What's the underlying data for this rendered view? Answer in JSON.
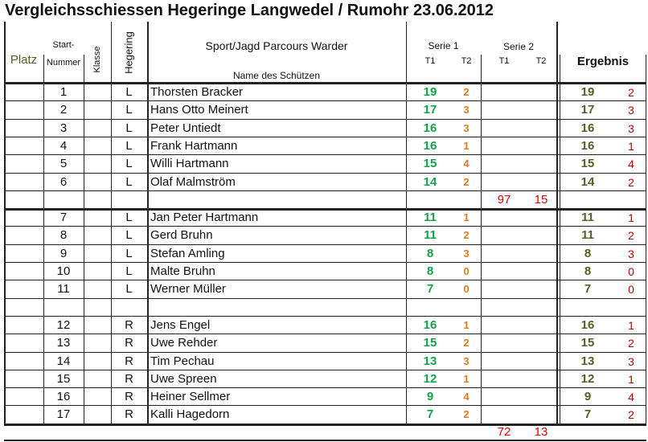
{
  "title": "Vergleichsschiessen Hegeringe Langwedel / Rumohr  23.06.2012",
  "header": {
    "platz": "Platz",
    "start1": "Start-",
    "start2": "Nummer",
    "klasse": "Klasse",
    "hegering": "Hegering",
    "event": "Sport/Jagd Parcours Warder",
    "name": "Name des Schützen",
    "serie1": "Serie 1",
    "serie2": "Serie 2",
    "t1a": "T1",
    "t2a": "T2",
    "t1b": "T1",
    "t2b": "T2",
    "ergebnis": "Ergebnis"
  },
  "colors": {
    "serie_t1": "#16a04a",
    "serie_t2": "#e07b1c",
    "ergebnis": "#4f6228",
    "fehler": "#c00000",
    "subtotal": "#e00000",
    "platz_header": "#4f6228"
  },
  "rows": [
    {
      "type": "player",
      "nr": "1",
      "hegering": "L",
      "name": "Thorsten Bracker",
      "t1": "19",
      "t2": "2",
      "erg": "19",
      "err": "2"
    },
    {
      "type": "player",
      "nr": "2",
      "hegering": "L",
      "name": "Hans Otto Meinert",
      "t1": "17",
      "t2": "3",
      "erg": "17",
      "err": "3"
    },
    {
      "type": "player",
      "nr": "3",
      "hegering": "L",
      "name": "Peter Untiedt",
      "t1": "16",
      "t2": "3",
      "erg": "16",
      "err": "3"
    },
    {
      "type": "player",
      "nr": "4",
      "hegering": "L",
      "name": "Frank Hartmann",
      "t1": "16",
      "t2": "1",
      "erg": "16",
      "err": "1"
    },
    {
      "type": "player",
      "nr": "5",
      "hegering": "L",
      "name": "Willi Hartmann",
      "t1": "15",
      "t2": "4",
      "erg": "15",
      "err": "4"
    },
    {
      "type": "player",
      "nr": "6",
      "hegering": "L",
      "name": "Olaf Malmström",
      "t1": "14",
      "t2": "2",
      "erg": "14",
      "err": "2"
    },
    {
      "type": "subtotal",
      "s1": "97",
      "s2": "15"
    },
    {
      "type": "player",
      "nr": "7",
      "hegering": "L",
      "name": "Jan Peter Hartmann",
      "t1": "11",
      "t2": "1",
      "erg": "11",
      "err": "1"
    },
    {
      "type": "player",
      "nr": "8",
      "hegering": "L",
      "name": "Gerd Bruhn",
      "t1": "11",
      "t2": "2",
      "erg": "11",
      "err": "2"
    },
    {
      "type": "player",
      "nr": "9",
      "hegering": "L",
      "name": "Stefan Amling",
      "t1": "8",
      "t2": "3",
      "erg": "8",
      "err": "3"
    },
    {
      "type": "player",
      "nr": "10",
      "hegering": "L",
      "name": "Malte Bruhn",
      "t1": "8",
      "t2": "0",
      "erg": "8",
      "err": "0"
    },
    {
      "type": "player",
      "nr": "11",
      "hegering": "L",
      "name": "Werner Müller",
      "t1": "7",
      "t2": "0",
      "erg": "7",
      "err": "0"
    },
    {
      "type": "blank"
    },
    {
      "type": "player",
      "nr": "12",
      "hegering": "R",
      "name": "Jens Engel",
      "t1": "16",
      "t2": "1",
      "erg": "16",
      "err": "1"
    },
    {
      "type": "player",
      "nr": "13",
      "hegering": "R",
      "name": "Uwe Rehder",
      "t1": "15",
      "t2": "2",
      "erg": "15",
      "err": "2"
    },
    {
      "type": "player",
      "nr": "14",
      "hegering": "R",
      "name": "Tim Pechau",
      "t1": "13",
      "t2": "3",
      "erg": "13",
      "err": "3"
    },
    {
      "type": "player",
      "nr": "15",
      "hegering": "R",
      "name": "Uwe Spreen",
      "t1": "12",
      "t2": "1",
      "erg": "12",
      "err": "1"
    },
    {
      "type": "player",
      "nr": "16",
      "hegering": "R",
      "name": "Heiner Sellmer",
      "t1": "9",
      "t2": "4",
      "erg": "9",
      "err": "4"
    },
    {
      "type": "player",
      "nr": "17",
      "hegering": "R",
      "name": "Kalli Hagedorn",
      "t1": "7",
      "t2": "2",
      "erg": "7",
      "err": "2"
    }
  ],
  "footer": {
    "s1": "72",
    "s2": "13"
  }
}
